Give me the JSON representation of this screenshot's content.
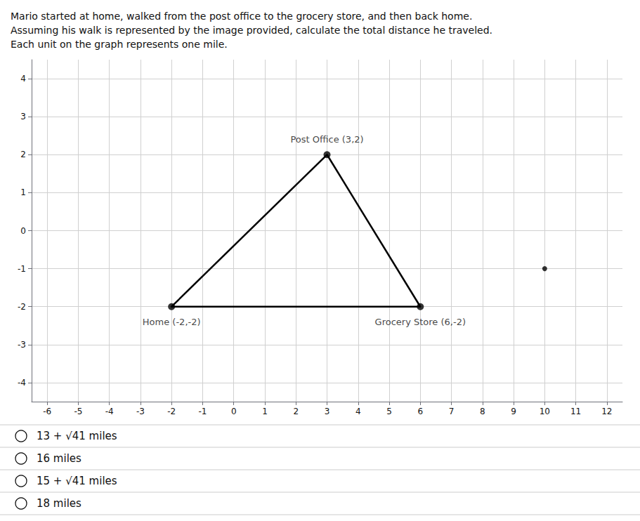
{
  "chart_data": {
    "type": "line",
    "title": "Mario started at home, walked from the post office to the grocery store, and then back home.\nAssuming his walk is represented by the image provided, calculate the total distance he traveled.\nEach unit on the graph represents one mile.",
    "series": [
      {
        "type": "line",
        "x": [
          -2,
          3,
          6,
          -2
        ],
        "values": [
          -2,
          2,
          -2,
          -2
        ],
        "color": "#000000"
      },
      {
        "type": "scatter",
        "x": [
          -2,
          3,
          6
        ],
        "values": [
          -2,
          2,
          -2
        ],
        "point_labels": [
          "Home (-2,-2)",
          "Post Office (3,2)",
          "Grocery Store (6,-2)"
        ],
        "color": "#000000"
      },
      {
        "type": "scatter",
        "x": [
          10
        ],
        "values": [
          -1
        ],
        "color": "#000000"
      }
    ],
    "xlim": [
      -6.5,
      12.5
    ],
    "ylim": [
      -4.5,
      4.5
    ],
    "xticks": [
      -6,
      -5,
      -4,
      -3,
      -2,
      -1,
      0,
      1,
      2,
      3,
      4,
      5,
      6,
      7,
      8,
      9,
      10,
      11,
      12
    ],
    "yticks": [
      -4,
      -3,
      -2,
      -1,
      0,
      1,
      2,
      3,
      4
    ],
    "grid": true,
    "annotations": [
      "13 + √41 miles",
      "16 miles",
      "15 + √41 miles",
      "18 miles"
    ]
  }
}
